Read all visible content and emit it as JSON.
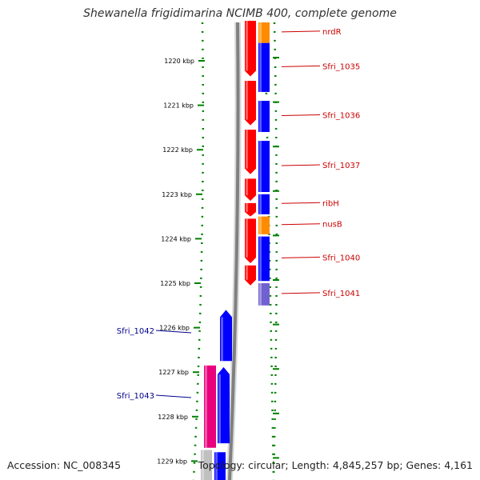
{
  "title": "Shewanella frigidimarina NCIMB 400, complete genome",
  "footer": {
    "accession": "Accession: NC_008345",
    "stats": "Topology: circular; Length: 4,845,257 bp; Genes: 4,161"
  },
  "colors": {
    "cds_forward_a": "#ff0000",
    "cds_forward_b": "#0000ff",
    "cds_reverse": "#0000ff",
    "rna_like": "#ff8c00",
    "pseudo": "#7060d0",
    "pink": "#e8007c",
    "gray": "#c0c0c0",
    "label_right": "#cc0000",
    "label_left": "#00008b",
    "tick": "#008000",
    "backbone": "#808080"
  },
  "ticks": [
    {
      "label": "1220 kbp",
      "kbp": 1220
    },
    {
      "label": "1221 kbp",
      "kbp": 1221
    },
    {
      "label": "1222 kbp",
      "kbp": 1222
    },
    {
      "label": "1223 kbp",
      "kbp": 1223
    },
    {
      "label": "1224 kbp",
      "kbp": 1224
    },
    {
      "label": "1225 kbp",
      "kbp": 1225
    },
    {
      "label": "1226 kbp",
      "kbp": 1226
    },
    {
      "label": "1227 kbp",
      "kbp": 1227
    },
    {
      "label": "1228 kbp",
      "kbp": 1228
    },
    {
      "label": "1229 kbp",
      "kbp": 1229
    }
  ],
  "genes_right": [
    {
      "name": "nrdR",
      "start": 1219.1,
      "end": 1219.6,
      "color": "rna_like"
    },
    {
      "name": "Sfri_1035",
      "start": 1219.6,
      "end": 1220.7
    },
    {
      "name": "Sfri_1036",
      "start": 1220.9,
      "end": 1221.6
    },
    {
      "name": "Sfri_1037",
      "start": 1221.8,
      "end": 1222.95
    },
    {
      "name": "ribH",
      "start": 1223.0,
      "end": 1223.45
    },
    {
      "name": "nusB",
      "start": 1223.5,
      "end": 1223.9,
      "color": "rna_like"
    },
    {
      "name": "Sfri_1040",
      "start": 1223.95,
      "end": 1224.95
    },
    {
      "name": "Sfri_1041",
      "start": 1225.0,
      "end": 1225.5,
      "color": "pseudo"
    }
  ],
  "genes_left": [
    {
      "name": "Sfri_1042",
      "start": 1225.6,
      "end": 1226.75
    },
    {
      "name": "Sfri_1043",
      "start": 1226.85,
      "end": 1228.6
    }
  ]
}
